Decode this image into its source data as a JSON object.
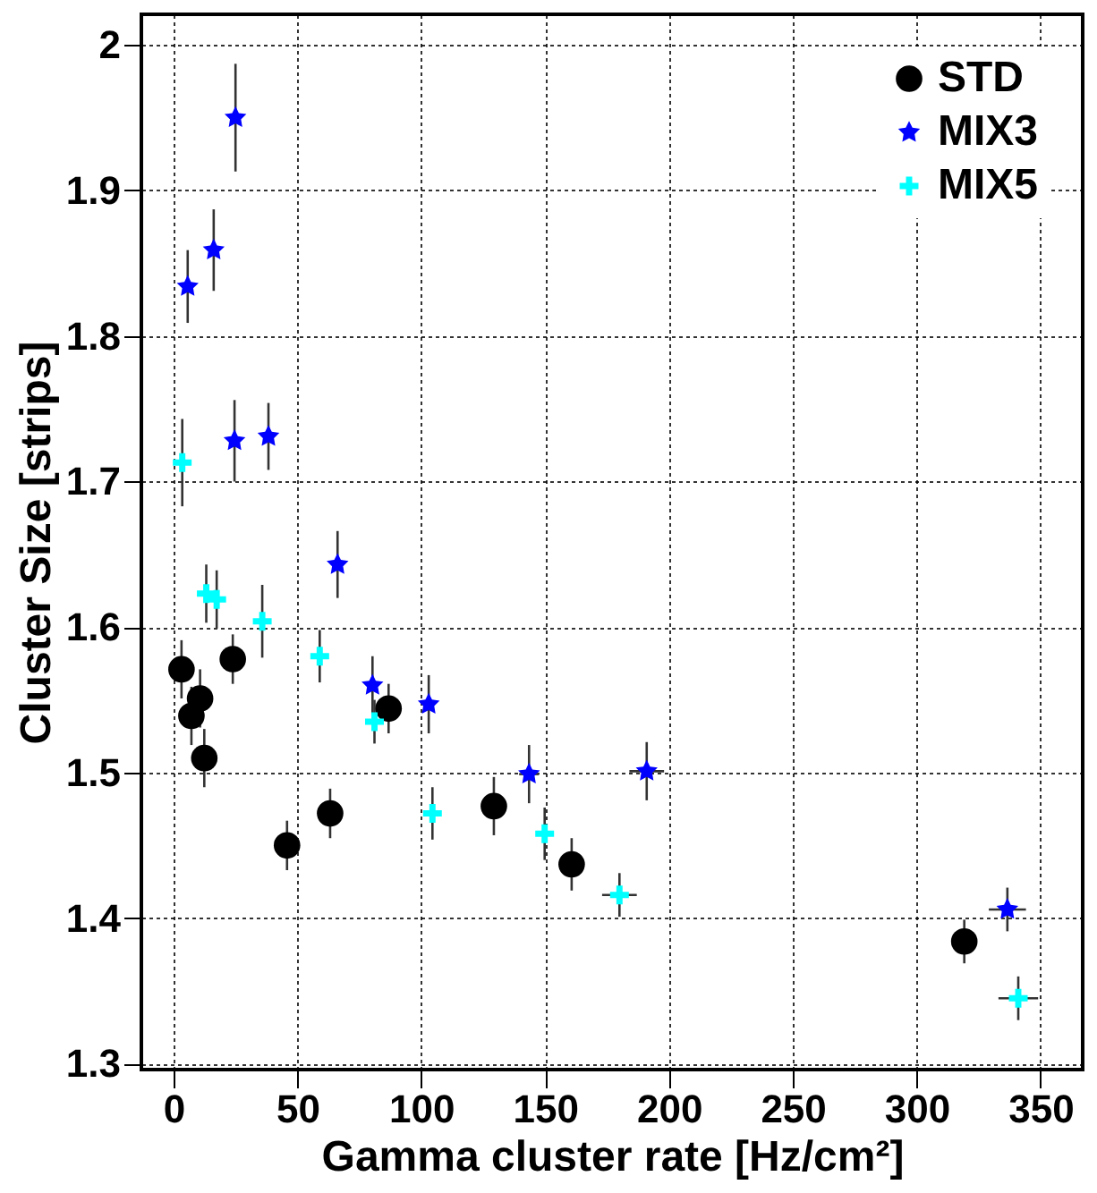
{
  "chart_data": {
    "type": "scatter",
    "xlabel": "Gamma cluster rate [Hz/cm²]",
    "ylabel": "Cluster Size [strips]",
    "xlim": [
      -13,
      367
    ],
    "ylim": [
      1.296,
      2.021
    ],
    "xticks": [
      0,
      50,
      100,
      150,
      200,
      250,
      300,
      350
    ],
    "yticks": [
      1.3,
      1.4,
      1.5,
      1.6,
      1.7,
      1.8,
      1.9,
      2
    ],
    "grid": true,
    "legend": "top right",
    "series": [
      {
        "name": "STD",
        "color": "#000000",
        "marker": "circle",
        "x": [
          3.2,
          7.2,
          10.7,
          12.4,
          23.9,
          45.8,
          63.2,
          86.8,
          129.3,
          160.7,
          319.2
        ],
        "values": [
          1.571,
          1.539,
          1.551,
          1.51,
          1.578,
          1.45,
          1.472,
          1.544,
          1.477,
          1.437,
          1.384
        ],
        "errors": [
          0.02,
          0.02,
          0.02,
          0.02,
          0.017,
          0.017,
          0.017,
          0.017,
          0.02,
          0.018,
          0.015
        ]
      },
      {
        "name": "MIX3",
        "color": "#0000ff",
        "marker": "star",
        "x": [
          5.7,
          16.2,
          25,
          24.6,
          38.3,
          66.2,
          80.3,
          103,
          143.5,
          191,
          336.6
        ],
        "values": [
          1.834,
          1.859,
          1.95,
          1.728,
          1.731,
          1.643,
          1.56,
          1.547,
          1.499,
          1.501,
          1.406
        ],
        "errors": [
          0.025,
          0.028,
          0.037,
          0.028,
          0.023,
          0.023,
          0.02,
          0.02,
          0.02,
          0.02,
          0.015
        ],
        "xerrors": [
          null,
          null,
          null,
          null,
          null,
          null,
          null,
          null,
          4,
          7,
          7.5
        ]
      },
      {
        "name": "MIX5",
        "color": "#00ffff",
        "marker": "cross",
        "x": [
          3.5,
          13.2,
          17.4,
          35.8,
          59,
          81.1,
          104.5,
          149.8,
          180,
          341
        ],
        "values": [
          1.713,
          1.623,
          1.619,
          1.604,
          1.58,
          1.535,
          1.472,
          1.458,
          1.416,
          1.345
        ],
        "errors": [
          0.03,
          0.02,
          0.02,
          0.025,
          0.018,
          0.015,
          0.018,
          0.018,
          0.015,
          0.015
        ],
        "xerrors": [
          null,
          null,
          null,
          null,
          null,
          null,
          null,
          null,
          7,
          8
        ]
      }
    ]
  }
}
